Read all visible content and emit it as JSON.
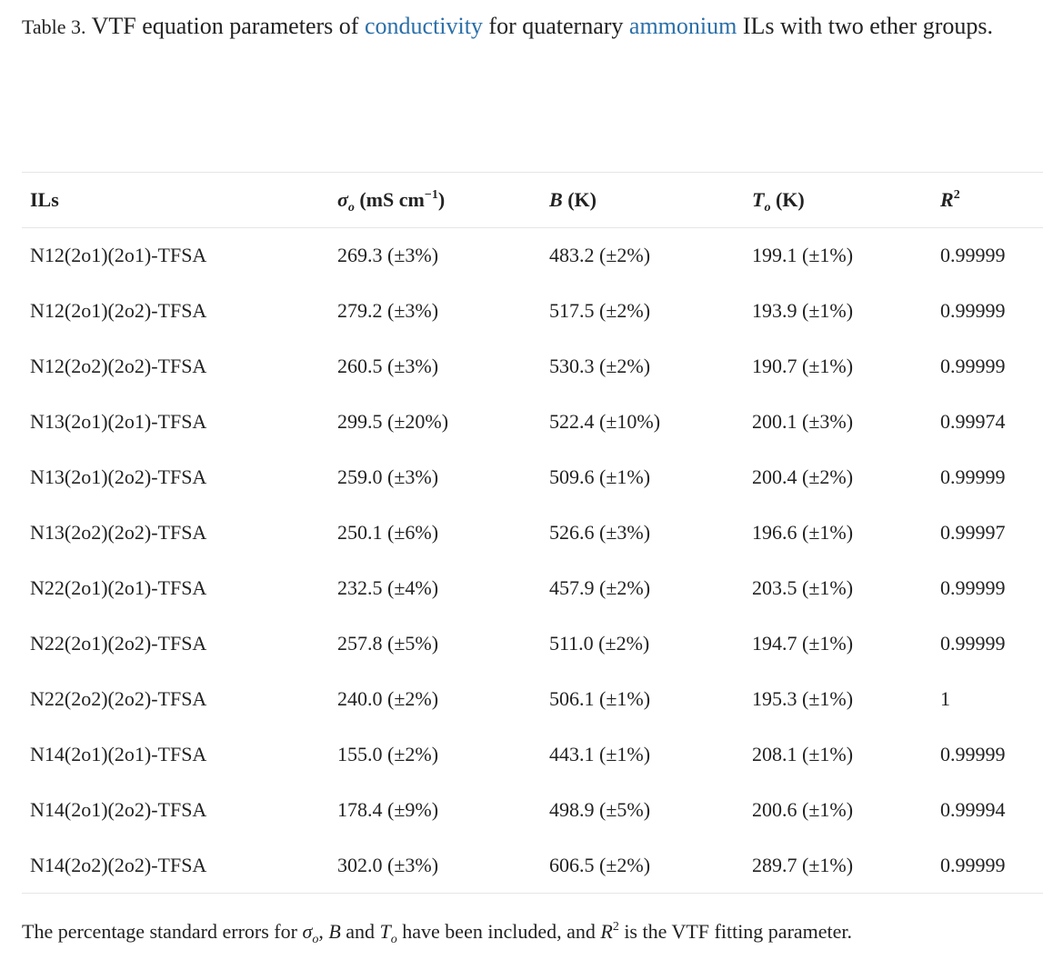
{
  "caption": {
    "label": "Table 3.",
    "text_1": " VTF equation parameters of ",
    "link_1": "conductivity",
    "text_2": " for quaternary ",
    "link_2": "ammonium",
    "text_3": " ILs with two ether groups."
  },
  "table": {
    "headers": {
      "col1": "ILs",
      "col2_symbol": "σ",
      "col2_sub": "o",
      "col2_unit": " (mS cm",
      "col2_exp": "−1",
      "col2_close": ")",
      "col3_symbol": "B",
      "col3_unit": " (K)",
      "col4_symbol": "T",
      "col4_sub": "o",
      "col4_unit": " (K)",
      "col5_symbol": "R",
      "col5_exp": "2"
    },
    "rows": [
      [
        "N12(2o1)(2o1)-TFSA",
        "269.3 (±3%)",
        "483.2 (±2%)",
        "199.1 (±1%)",
        "0.99999"
      ],
      [
        "N12(2o1)(2o2)-TFSA",
        "279.2 (±3%)",
        "517.5 (±2%)",
        "193.9 (±1%)",
        "0.99999"
      ],
      [
        "N12(2o2)(2o2)-TFSA",
        "260.5 (±3%)",
        "530.3 (±2%)",
        "190.7 (±1%)",
        "0.99999"
      ],
      [
        "N13(2o1)(2o1)-TFSA",
        "299.5 (±20%)",
        "522.4 (±10%)",
        "200.1 (±3%)",
        "0.99974"
      ],
      [
        "N13(2o1)(2o2)-TFSA",
        "259.0 (±3%)",
        "509.6 (±1%)",
        "200.4 (±2%)",
        "0.99999"
      ],
      [
        "N13(2o2)(2o2)-TFSA",
        "250.1 (±6%)",
        "526.6 (±3%)",
        "196.6 (±1%)",
        "0.99997"
      ],
      [
        "N22(2o1)(2o1)-TFSA",
        "232.5 (±4%)",
        "457.9 (±2%)",
        "203.5 (±1%)",
        "0.99999"
      ],
      [
        "N22(2o1)(2o2)-TFSA",
        "257.8 (±5%)",
        "511.0 (±2%)",
        "194.7 (±1%)",
        "0.99999"
      ],
      [
        "N22(2o2)(2o2)-TFSA",
        "240.0 (±2%)",
        "506.1 (±1%)",
        "195.3 (±1%)",
        "1"
      ],
      [
        "N14(2o1)(2o1)-TFSA",
        "155.0 (±2%)",
        "443.1 (±1%)",
        "208.1 (±1%)",
        "0.99999"
      ],
      [
        "N14(2o1)(2o2)-TFSA",
        "178.4 (±9%)",
        "498.9 (±5%)",
        "200.6 (±1%)",
        "0.99994"
      ],
      [
        "N14(2o2)(2o2)-TFSA",
        "302.0 (±3%)",
        "606.5 (±2%)",
        "289.7 (±1%)",
        "0.99999"
      ]
    ]
  },
  "footnote": {
    "t1": "The percentage standard errors for ",
    "s1": "σ",
    "s1_sub": "o",
    "t2": ", ",
    "s2": "B",
    "t3": " and ",
    "s3": "T",
    "s3_sub": "o",
    "t4": " have been included, and ",
    "s4": "R",
    "s4_exp": "2",
    "t5": " is the VTF fitting parameter."
  },
  "colors": {
    "link": "#2a6fa8",
    "text": "#222222",
    "rule": "#e6e6e6"
  }
}
